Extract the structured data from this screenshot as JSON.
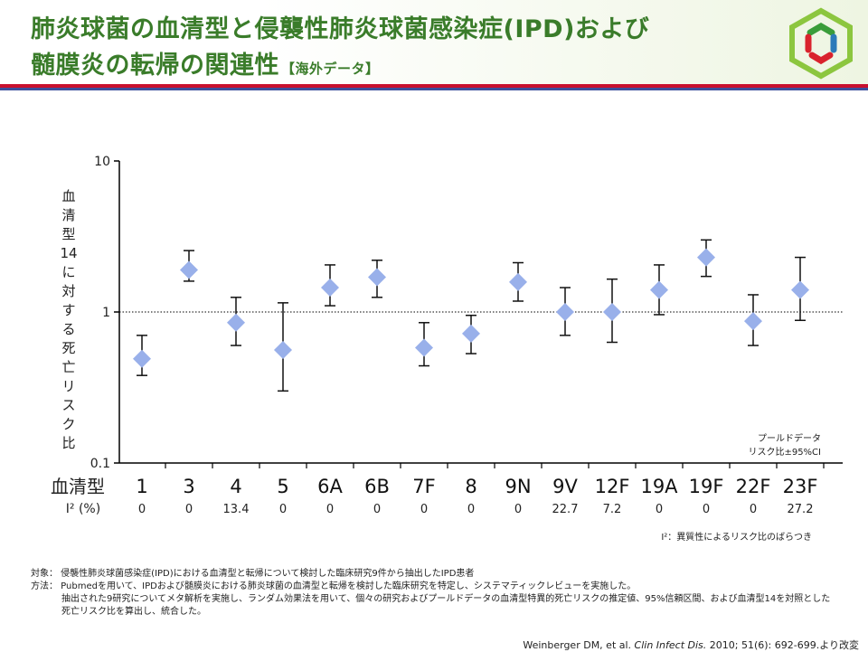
{
  "header": {
    "title_line1": "肺炎球菌の血清型と侵襲性肺炎球菌感染症(IPD)および",
    "title_line2": "髄膜炎の転帰の関連性",
    "title_note": "【海外データ】"
  },
  "logo": {
    "icon": "hexagon-logo-icon",
    "colors": [
      "#8cc63f",
      "#2b7bb9",
      "#d9232d",
      "#3a9d3a"
    ]
  },
  "chart_data": {
    "type": "scatter",
    "yscale": "log",
    "ylim": [
      0.1,
      10
    ],
    "y_ticks": [
      "10",
      "1",
      "0.1"
    ],
    "ylabel": "血清型14に対する死亡リスク比",
    "xlabel": "血清型",
    "categories": [
      "1",
      "3",
      "4",
      "5",
      "6A",
      "6B",
      "7F",
      "8",
      "9N",
      "9V",
      "12F",
      "19A",
      "19F",
      "22F",
      "23F"
    ],
    "values": [
      0.49,
      1.9,
      0.85,
      0.56,
      1.45,
      1.7,
      0.58,
      0.72,
      1.58,
      1.0,
      1.0,
      1.4,
      2.3,
      0.87,
      1.4
    ],
    "ci_low": [
      0.38,
      1.6,
      0.6,
      0.3,
      1.1,
      1.25,
      0.44,
      0.53,
      1.18,
      0.7,
      0.63,
      0.96,
      1.72,
      0.6,
      0.88
    ],
    "ci_high": [
      0.7,
      2.55,
      1.25,
      1.15,
      2.05,
      2.2,
      0.85,
      0.95,
      2.12,
      1.45,
      1.65,
      2.05,
      3.0,
      1.3,
      2.3
    ],
    "i2_label": "I² (%)",
    "i2_values": [
      "0",
      "0",
      "13.4",
      "0",
      "0",
      "0",
      "0",
      "0",
      "0",
      "22.7",
      "7.2",
      "0",
      "0",
      "0",
      "27.2"
    ],
    "reference_line": 1,
    "marker_color": "#99b0ea",
    "legend_line1": "プールドデータ",
    "legend_line2": "リスク比±95%CI",
    "i2_note": "I²：異質性によるリスク比のばらつき"
  },
  "footnotes": {
    "subject": "対象： 侵襲性肺炎球菌感染症(IPD)における血清型と転帰について検討した臨床研究9件から抽出したIPD患者",
    "method": "方法： Pubmedを用いて、IPDおよび髄膜炎における肺炎球菌の血清型と転帰を検討した臨床研究を特定し、システマティックレビューを実施した。",
    "method2": "抽出された9研究についてメタ解析を実施し、ランダム効果法を用いて、個々の研究およびプールドデータの血清型特異的死亡リスクの推定値、95%信頼区間、および血清型14を対照とした",
    "method3": "死亡リスク比を算出し、統合した。"
  },
  "citation": {
    "authors": "Weinberger DM, et al. ",
    "journal": "Clin Infect Dis.",
    "rest": " 2010; 51(6): 692-699.より改変"
  }
}
